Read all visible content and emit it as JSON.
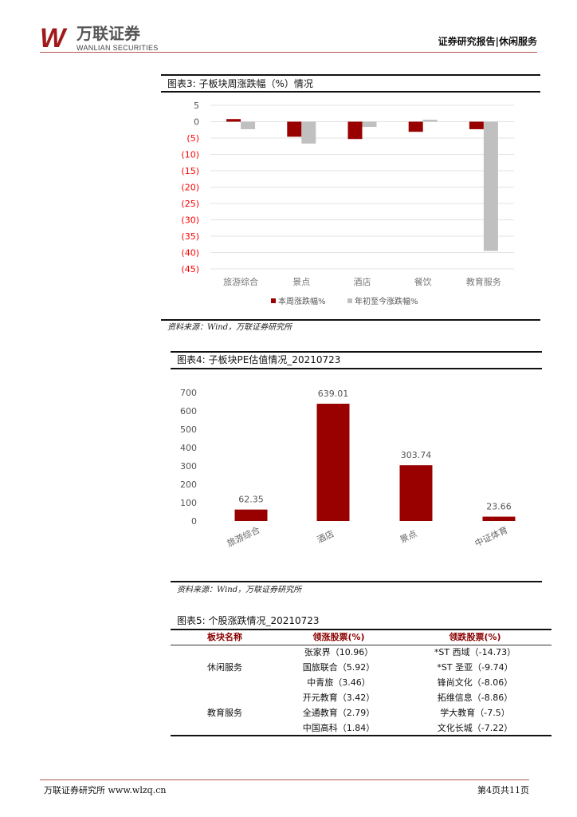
{
  "header": {
    "logo_mark": "W",
    "logo_cn": "万联证券",
    "logo_en": "WANLIAN SECURITIES",
    "report_type": "证券研究报告|休闲服务"
  },
  "fig3": {
    "caption": "图表3:  子板块周涨跌幅（%）情况",
    "source": "资料来源：Wind，万联证券研究所"
  },
  "fig4": {
    "caption": "图表4:  子板块PE估值情况_20210723",
    "source": "资料来源：Wind，万联证券研究所"
  },
  "fig5": {
    "caption": "图表5:  个股涨跌情况_20210723",
    "headers": [
      "板块名称",
      "领涨股票(%)",
      "领跌股票(%)"
    ],
    "groups": [
      "休闲服务",
      "教育服务"
    ],
    "rows": [
      {
        "up": "张家界（10.96）",
        "down": "*ST 西域（-14.73）"
      },
      {
        "up": "国旅联合（5.92）",
        "down": "*ST 圣亚（-9.74）"
      },
      {
        "up": "中青旅（3.46）",
        "down": "锋尚文化（-8.06）"
      },
      {
        "up": "开元教育（3.42）",
        "down": "拓维信息（-8.86）"
      },
      {
        "up": "全通教育（2.79）",
        "down": "学大教育（-7.5）"
      },
      {
        "up": "中国高科（1.84）",
        "down": "文化长城（-7.22）"
      }
    ]
  },
  "footer": {
    "left": "万联证券研究所 www.wlzq.cn",
    "right": "第4页共11页"
  },
  "colors": {
    "primary": "#990000",
    "secondary": "#c0c0c0",
    "negative_tick": "#ff0000"
  },
  "chart_data": [
    {
      "type": "bar",
      "categories": [
        "旅游综合",
        "景点",
        "酒店",
        "餐饮",
        "教育服务"
      ],
      "series": [
        {
          "name": "本周涨跌幅%",
          "values": [
            0.8,
            -4.6,
            -5.3,
            -3.1,
            -2.3
          ]
        },
        {
          "name": "年初至今涨跌幅%",
          "values": [
            -2.3,
            -6.7,
            -1.6,
            0.6,
            -39.5
          ]
        }
      ],
      "yticks": [
        "5",
        "0",
        "(5)",
        "(10)",
        "(15)",
        "(20)",
        "(25)",
        "(30)",
        "(35)",
        "(40)",
        "(45)"
      ],
      "ylim": [
        -45,
        5
      ],
      "grid": true,
      "legend": "bottom"
    },
    {
      "type": "bar",
      "categories": [
        "旅游综合",
        "酒店",
        "景点",
        "中证体育"
      ],
      "values": [
        62.35,
        639.01,
        303.74,
        23.66
      ],
      "labels": [
        "62.35",
        "639.01",
        "303.74",
        "23.66"
      ],
      "yticks": [
        "700",
        "600",
        "500",
        "400",
        "300",
        "200",
        "100",
        "0"
      ],
      "ylim": [
        0,
        700
      ],
      "grid": false
    }
  ]
}
